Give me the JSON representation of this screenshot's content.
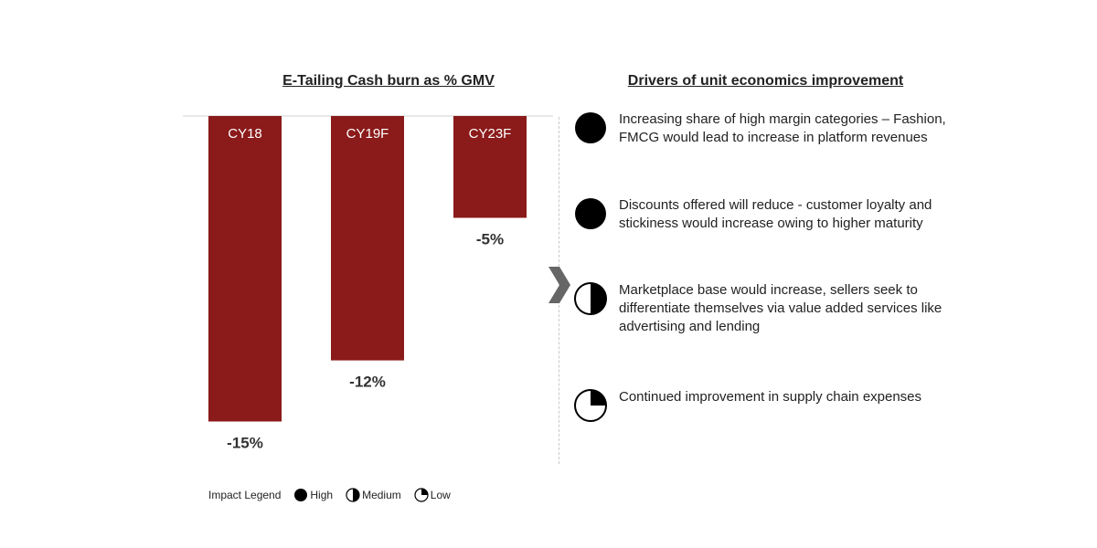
{
  "chart_data": {
    "type": "bar",
    "title": "E-Tailing Cash burn as % GMV",
    "categories": [
      "CY18",
      "CY19F",
      "CY23F"
    ],
    "values": [
      -15,
      -12,
      -5
    ],
    "value_labels": [
      "-15%",
      "-12%",
      "-5%"
    ],
    "ylim": [
      -15,
      0
    ],
    "bar_color": "#8B1A1A",
    "grid": false
  },
  "drivers": {
    "title": "Drivers of unit economics improvement",
    "items": [
      {
        "text": "Increasing share of high margin categories – Fashion, FMCG would lead to increase in platform revenues",
        "impact": "high"
      },
      {
        "text": "Discounts offered will reduce - customer loyalty and stickiness would increase owing to higher maturity",
        "impact": "high"
      },
      {
        "text": "Marketplace base would increase, sellers seek to differentiate themselves via value added services like advertising and lending",
        "impact": "medium"
      },
      {
        "text": "Continued improvement in supply chain expenses",
        "impact": "low"
      }
    ]
  },
  "legend": {
    "label": "Impact Legend",
    "high": "High",
    "medium": "Medium",
    "low": "Low"
  },
  "icons": {
    "chevron": "chevron-right-icon",
    "high": "full-circle-icon",
    "medium": "half-circle-icon",
    "low": "quarter-circle-icon"
  }
}
